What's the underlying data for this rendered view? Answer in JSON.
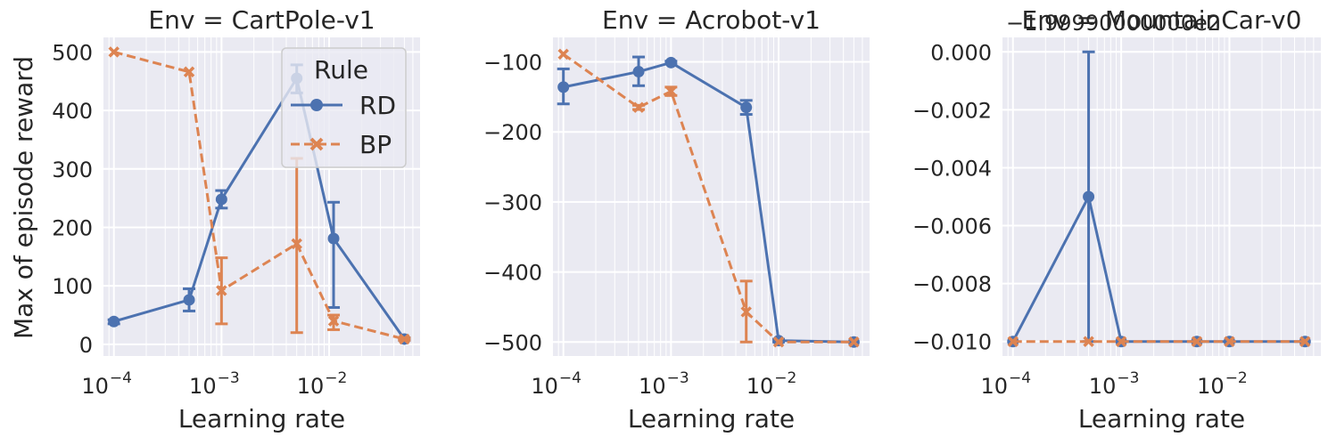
{
  "figure": {
    "ylabel": "Max of episode reward",
    "xlabel": "Learning rate",
    "legend": {
      "title": "Rule",
      "placement": "upper-right of first panel",
      "entries": [
        {
          "name": "RD",
          "marker": "circle",
          "dash": "solid"
        },
        {
          "name": "BP",
          "marker": "x",
          "dash": "dashed"
        }
      ]
    },
    "colors": {
      "RD": "#4c72b0",
      "BP": "#dd8452",
      "background": "#eaeaf2",
      "grid": "#ffffff"
    }
  },
  "chart_data": [
    {
      "type": "line",
      "title": "Env = CartPole-v1",
      "xscale": "log",
      "xlim": [
        8e-05,
        0.07
      ],
      "xticks": [
        {
          "value": 0.0001,
          "label": "10",
          "exp": "−4"
        },
        {
          "value": 0.001,
          "label": "10",
          "exp": "−3"
        },
        {
          "value": 0.01,
          "label": "10",
          "exp": "−2"
        }
      ],
      "ylim": [
        -20,
        525
      ],
      "yticks": [
        0,
        100,
        200,
        300,
        400,
        500
      ],
      "offset_text": "",
      "series": [
        {
          "name": "RD",
          "x": [
            0.0001,
            0.0005,
            0.001,
            0.005,
            0.011,
            0.05
          ],
          "y": [
            39,
            76,
            248,
            455,
            181,
            9
          ],
          "err_low": [
            35,
            57,
            233,
            430,
            63,
            7
          ],
          "err_high": [
            42,
            95,
            263,
            478,
            243,
            11
          ]
        },
        {
          "name": "BP",
          "x": [
            0.0001,
            0.0005,
            0.001,
            0.005,
            0.011,
            0.05
          ],
          "y": [
            500,
            466,
            92,
            172,
            40,
            9
          ],
          "err_low": [
            500,
            466,
            35,
            20,
            25,
            7
          ],
          "err_high": [
            500,
            466,
            148,
            318,
            50,
            11
          ]
        }
      ]
    },
    {
      "type": "line",
      "title": "Env = Acrobot-v1",
      "xscale": "log",
      "xlim": [
        8e-05,
        0.07
      ],
      "xticks": [
        {
          "value": 0.0001,
          "label": "10",
          "exp": "−4"
        },
        {
          "value": 0.001,
          "label": "10",
          "exp": "−3"
        },
        {
          "value": 0.01,
          "label": "10",
          "exp": "−2"
        }
      ],
      "ylim": [
        -520,
        -65
      ],
      "yticks": [
        -500,
        -400,
        -300,
        -200,
        -100
      ],
      "offset_text": "",
      "series": [
        {
          "name": "RD",
          "x": [
            0.0001,
            0.0005,
            0.001,
            0.005,
            0.01,
            0.05
          ],
          "y": [
            -136,
            -114,
            -101,
            -165,
            -498,
            -500
          ],
          "err_low": [
            -160,
            -134,
            -103,
            -175,
            -500,
            -500
          ],
          "err_high": [
            -110,
            -93,
            -99,
            -155,
            -496,
            -500
          ]
        },
        {
          "name": "BP",
          "x": [
            0.0001,
            0.0005,
            0.001,
            0.005,
            0.01,
            0.05
          ],
          "y": [
            -89,
            -165,
            -142,
            -457,
            -500,
            -500
          ],
          "err_low": [
            -89,
            -168,
            -148,
            -500,
            -500,
            -500
          ],
          "err_high": [
            -89,
            -162,
            -136,
            -413,
            -500,
            -500
          ]
        }
      ]
    },
    {
      "type": "line",
      "title": "Env = MountainCar-v0",
      "xscale": "log",
      "xlim": [
        8e-05,
        0.07
      ],
      "xticks": [
        {
          "value": 0.0001,
          "label": "10",
          "exp": "−4"
        },
        {
          "value": 0.001,
          "label": "10",
          "exp": "−3"
        },
        {
          "value": 0.01,
          "label": "10",
          "exp": "−2"
        }
      ],
      "ylim": [
        -0.0105,
        0.0005
      ],
      "yticks": [
        0.0,
        -0.002,
        -0.004,
        -0.006,
        -0.008,
        -0.01
      ],
      "ytick_labels": [
        "0.000",
        "−0.002",
        "−0.004",
        "−0.006",
        "−0.008",
        "−0.010"
      ],
      "offset_text": "−1.99990000000e2",
      "series": [
        {
          "name": "RD",
          "x": [
            0.0001,
            0.0005,
            0.001,
            0.005,
            0.01,
            0.05
          ],
          "y": [
            -0.01,
            -0.005,
            -0.01,
            -0.01,
            -0.01,
            -0.01
          ],
          "err_low": [
            -0.01,
            -0.01,
            -0.01,
            -0.01,
            -0.01,
            -0.01
          ],
          "err_high": [
            -0.01,
            0.0,
            -0.01,
            -0.01,
            -0.01,
            -0.01
          ]
        },
        {
          "name": "BP",
          "x": [
            0.0001,
            0.0005,
            0.001,
            0.005,
            0.01,
            0.05
          ],
          "y": [
            -0.01,
            -0.01,
            -0.01,
            -0.01,
            -0.01,
            -0.01
          ],
          "err_low": [
            -0.01,
            -0.01,
            -0.01,
            -0.01,
            -0.01,
            -0.01
          ],
          "err_high": [
            -0.01,
            -0.01,
            -0.01,
            -0.01,
            -0.01,
            -0.01
          ]
        }
      ]
    }
  ]
}
